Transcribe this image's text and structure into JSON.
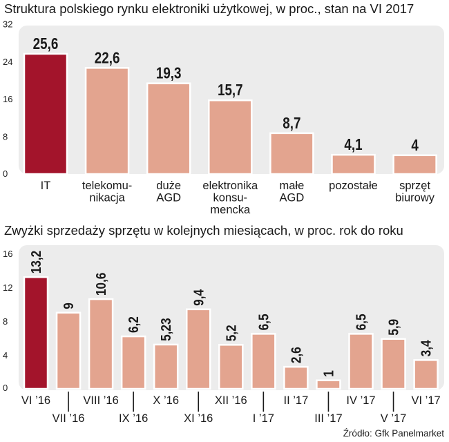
{
  "colors": {
    "panel": "#ececec",
    "bar": "#e3a48f",
    "bar_stroke": "#ffffff",
    "highlight": "#a3142b",
    "text": "#1a1a1a"
  },
  "source": "Źródło: Gfk Panelmarket",
  "chart_data": [
    {
      "type": "bar",
      "title": "Struktura polskiego rynku elektroniki użytkowej, w proc., stan na VI 2017",
      "categories": [
        [
          "IT"
        ],
        [
          "telekomu-",
          "nikacja"
        ],
        [
          "duże",
          "AGD"
        ],
        [
          "elektronika",
          "konsu-",
          "mencka"
        ],
        [
          "małe",
          "AGD"
        ],
        [
          "pozostałe"
        ],
        [
          "sprzęt",
          "biurowy"
        ]
      ],
      "values": [
        25.6,
        22.6,
        19.3,
        15.7,
        8.7,
        4.1,
        4
      ],
      "value_labels": [
        "25,6",
        "22,6",
        "19,3",
        "15,7",
        "8,7",
        "4,1",
        "4"
      ],
      "yticks": [
        "0",
        "8",
        "16",
        "24",
        "32"
      ],
      "ylim": [
        0,
        32
      ],
      "highlight_index": 0,
      "xlabel": "",
      "ylabel": ""
    },
    {
      "type": "bar",
      "title": "Zwyżki sprzedaży sprzętu w kolejnych miesiącach, w proc. rok do roku",
      "categories": [
        "VI ’16",
        "VII ’16",
        "VIII ’16",
        "IX ’16",
        "X ’16",
        "XI ’16",
        "XII ’16",
        "I ’17",
        "II ’17",
        "III ’17",
        "IV ’17",
        "V ’17",
        "VI ’17"
      ],
      "values": [
        13.2,
        9,
        10.6,
        6.2,
        5.23,
        9.4,
        5.2,
        6.5,
        2.6,
        1,
        6.5,
        5.9,
        3.4
      ],
      "value_labels": [
        "13,2",
        "9",
        "10,6",
        "6,2",
        "5,23",
        "9,4",
        "5,2",
        "6,5",
        "2,6",
        "1",
        "6,5",
        "5,9",
        "3,4"
      ],
      "yticks": [
        "0",
        "4",
        "8",
        "12",
        "16"
      ],
      "ylim": [
        0,
        16
      ],
      "highlight_index": 0,
      "xlabel": "",
      "ylabel": ""
    }
  ]
}
